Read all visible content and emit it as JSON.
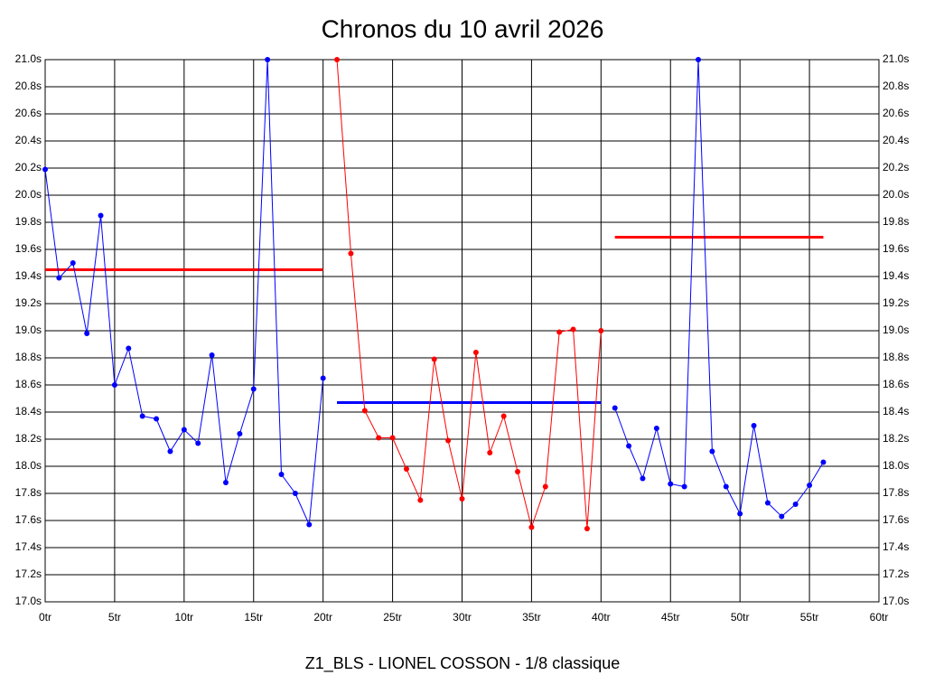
{
  "chart_data": {
    "type": "line",
    "title": "Chronos du 10 avril 2026",
    "x_label": "Z1_BLS - LIONEL COSSON - 1/8 classique",
    "xlim": [
      0,
      60
    ],
    "xticks": [
      {
        "value": 0,
        "label": "0tr"
      },
      {
        "value": 5,
        "label": "5tr"
      },
      {
        "value": 10,
        "label": "10tr"
      },
      {
        "value": 15,
        "label": "15tr"
      },
      {
        "value": 20,
        "label": "20tr"
      },
      {
        "value": 25,
        "label": "25tr"
      },
      {
        "value": 30,
        "label": "30tr"
      },
      {
        "value": 35,
        "label": "35tr"
      },
      {
        "value": 40,
        "label": "40tr"
      },
      {
        "value": 45,
        "label": "45tr"
      },
      {
        "value": 50,
        "label": "50tr"
      },
      {
        "value": 55,
        "label": "55tr"
      },
      {
        "value": 60,
        "label": "60tr"
      }
    ],
    "ylim": [
      17.0,
      21.0
    ],
    "yticks": [
      {
        "value": 17.0,
        "label": "17.0s"
      },
      {
        "value": 17.2,
        "label": "17.2s"
      },
      {
        "value": 17.4,
        "label": "17.4s"
      },
      {
        "value": 17.6,
        "label": "17.6s"
      },
      {
        "value": 17.8,
        "label": "17.8s"
      },
      {
        "value": 18.0,
        "label": "18.0s"
      },
      {
        "value": 18.2,
        "label": "18.2s"
      },
      {
        "value": 18.4,
        "label": "18.4s"
      },
      {
        "value": 18.6,
        "label": "18.6s"
      },
      {
        "value": 18.8,
        "label": "18.8s"
      },
      {
        "value": 19.0,
        "label": "19.0s"
      },
      {
        "value": 19.2,
        "label": "19.2s"
      },
      {
        "value": 19.4,
        "label": "19.4s"
      },
      {
        "value": 19.6,
        "label": "19.6s"
      },
      {
        "value": 19.8,
        "label": "19.8s"
      },
      {
        "value": 20.0,
        "label": "20.0s"
      },
      {
        "value": 20.2,
        "label": "20.2s"
      },
      {
        "value": 20.4,
        "label": "20.4s"
      },
      {
        "value": 20.6,
        "label": "20.6s"
      },
      {
        "value": 20.8,
        "label": "20.8s"
      },
      {
        "value": 21.0,
        "label": "21.0s"
      }
    ],
    "grid": true,
    "series": [
      {
        "color": "#0000ff",
        "x": [
          0,
          1,
          2,
          3,
          4,
          5,
          6,
          7,
          8,
          9,
          10,
          11,
          12,
          13,
          14,
          15,
          16,
          17,
          18,
          19,
          20
        ],
        "values": [
          20.19,
          19.39,
          19.5,
          18.98,
          19.85,
          18.6,
          18.87,
          18.37,
          18.35,
          18.11,
          18.27,
          18.17,
          18.82,
          17.88,
          18.24,
          18.57,
          21.0,
          17.94,
          17.8,
          17.57,
          18.65
        ]
      },
      {
        "color": "#ff0000",
        "x": [
          21,
          22,
          23,
          24,
          25,
          26,
          27,
          28,
          29,
          30,
          31,
          32,
          33,
          34,
          35,
          36,
          37,
          38,
          39,
          40
        ],
        "values": [
          21.0,
          19.57,
          18.41,
          18.21,
          18.21,
          17.98,
          17.75,
          18.79,
          18.19,
          17.76,
          18.84,
          18.1,
          18.37,
          17.96,
          17.55,
          17.85,
          18.99,
          19.01,
          17.54,
          19.0
        ]
      },
      {
        "color": "#0000ff",
        "x": [
          41,
          42,
          43,
          44,
          45,
          46,
          47,
          48,
          49,
          50,
          51,
          52,
          53,
          54,
          55,
          56
        ],
        "values": [
          18.43,
          18.15,
          17.91,
          18.28,
          17.87,
          17.85,
          21.0,
          18.11,
          17.85,
          17.65,
          18.3,
          17.73,
          17.63,
          17.72,
          17.86,
          18.03
        ]
      }
    ],
    "averages": [
      {
        "color": "#ff0000",
        "x": [
          0,
          20
        ],
        "value": 19.45
      },
      {
        "color": "#0000ff",
        "x": [
          21,
          40
        ],
        "value": 18.47
      },
      {
        "color": "#ff0000",
        "x": [
          41,
          56
        ],
        "value": 19.69
      }
    ]
  }
}
